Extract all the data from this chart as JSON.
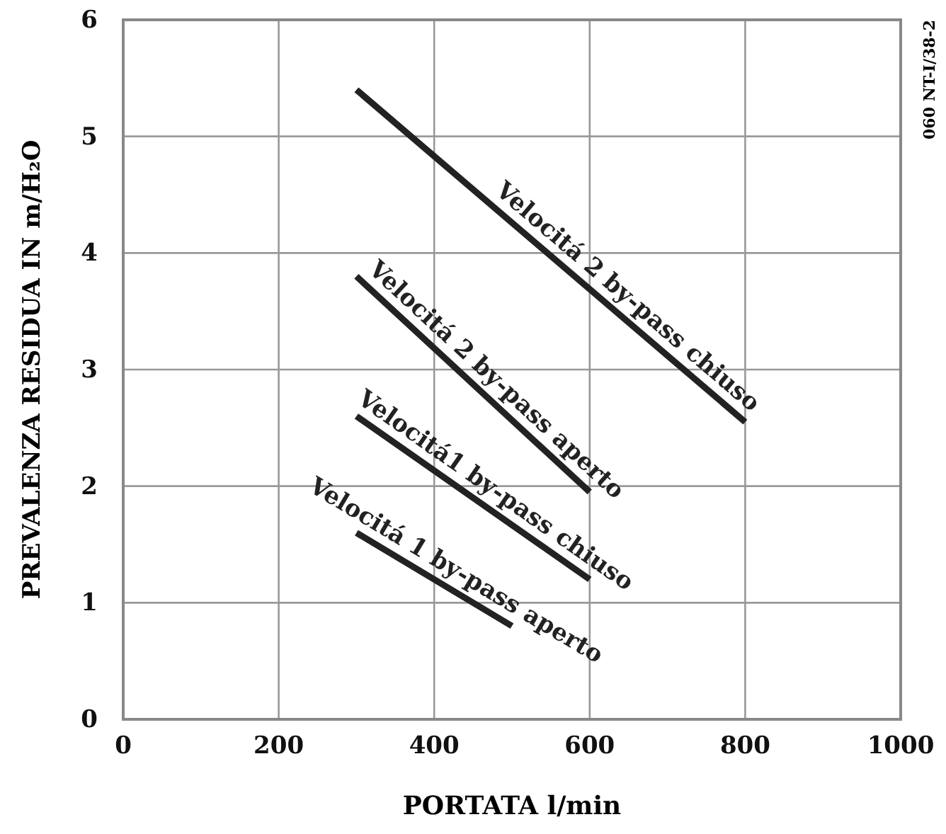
{
  "chart_data": {
    "type": "line",
    "xlabel": "PORTATA l/min",
    "ylabel": "PREVALENZA RESIDUA IN m/H₂O",
    "xlim": [
      0,
      1000
    ],
    "ylim": [
      0,
      6
    ],
    "xticks": [
      0,
      200,
      400,
      600,
      800,
      1000
    ],
    "yticks": [
      0,
      1,
      2,
      3,
      4,
      5,
      6
    ],
    "grid": true,
    "marker": "none",
    "line_style": "solid",
    "annotations": [
      "060 NT-I/38-2"
    ],
    "series": [
      {
        "name": "Velocitá 2 by-pass chiuso",
        "color": "#222222",
        "x": [
          300,
          800
        ],
        "values": [
          5.4,
          2.55
        ]
      },
      {
        "name": "Velocitá 2 by-pass aperto",
        "color": "#222222",
        "x": [
          300,
          600
        ],
        "values": [
          3.8,
          1.95
        ]
      },
      {
        "name": "Velocitá1 by-pass chiuso",
        "color": "#222222",
        "x": [
          300,
          600
        ],
        "values": [
          2.6,
          1.2
        ]
      },
      {
        "name": "Velocitá 1 by-pass aperto",
        "color": "#222222",
        "x": [
          300,
          500
        ],
        "values": [
          1.6,
          0.8
        ]
      }
    ]
  }
}
